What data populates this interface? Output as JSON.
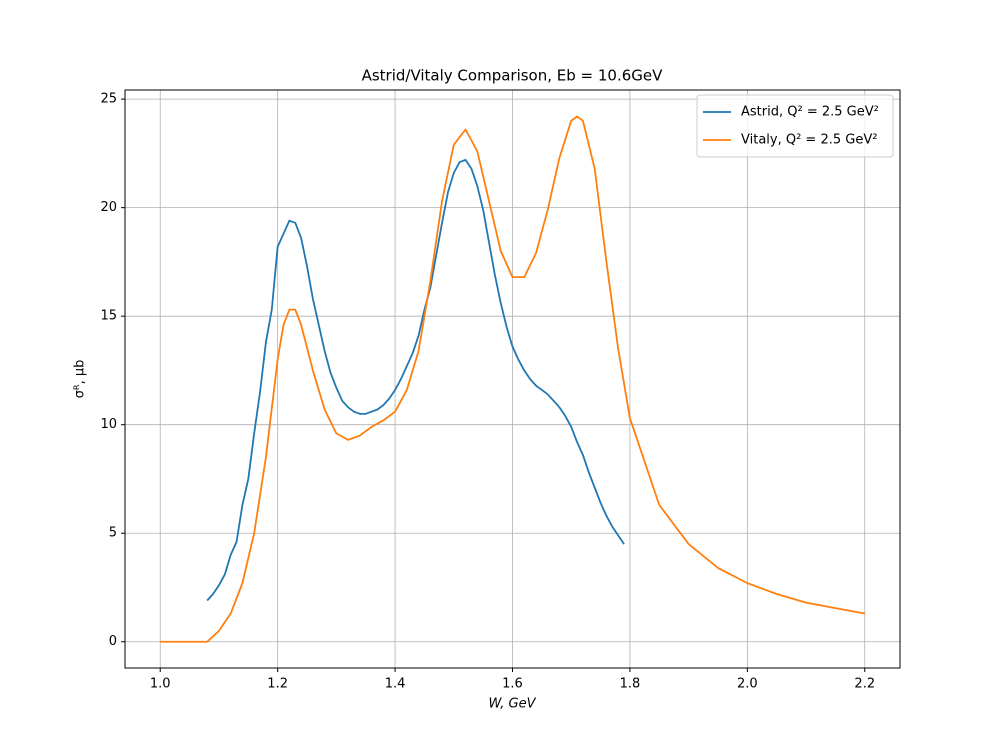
{
  "chart_data": {
    "type": "line",
    "title": "Astrid/Vitaly Comparison, Eb = 10.6GeV",
    "x_label": "W, GeV",
    "y_label": "σᴿ, μb",
    "xlim": [
      0.94,
      2.26
    ],
    "ylim": [
      -1.21,
      25.42
    ],
    "xticks": [
      {
        "value": 1,
        "label": "1.0"
      },
      1.2,
      1.4,
      1.6,
      1.8,
      {
        "value": 2,
        "label": "2.0"
      },
      2.2
    ],
    "yticks": [
      0,
      5,
      10,
      15,
      20,
      25
    ],
    "grid": true,
    "legend": "upper right",
    "series": [
      {
        "name": "Astrid, Q² = 2.5 GeV²",
        "color": "#1f77b4",
        "x": [
          1.08,
          1.09,
          1.1,
          1.11,
          1.12,
          1.13,
          1.14,
          1.15,
          1.16,
          1.17,
          1.18,
          1.19,
          1.2,
          1.21,
          1.22,
          1.23,
          1.24,
          1.25,
          1.26,
          1.27,
          1.28,
          1.29,
          1.3,
          1.31,
          1.32,
          1.33,
          1.34,
          1.35,
          1.36,
          1.37,
          1.38,
          1.39,
          1.4,
          1.41,
          1.42,
          1.43,
          1.44,
          1.45,
          1.46,
          1.47,
          1.48,
          1.49,
          1.5,
          1.51,
          1.52,
          1.53,
          1.54,
          1.55,
          1.56,
          1.57,
          1.58,
          1.59,
          1.6,
          1.61,
          1.62,
          1.63,
          1.64,
          1.65,
          1.66,
          1.67,
          1.68,
          1.69,
          1.7,
          1.71,
          1.72,
          1.73,
          1.74,
          1.75,
          1.76,
          1.77,
          1.78,
          1.79
        ],
        "values": [
          1.9,
          2.2,
          2.6,
          3.1,
          4.0,
          4.6,
          6.3,
          7.5,
          9.6,
          11.5,
          13.8,
          15.3,
          18.2,
          18.8,
          19.4,
          19.3,
          18.6,
          17.3,
          15.8,
          14.6,
          13.4,
          12.4,
          11.7,
          11.1,
          10.8,
          10.6,
          10.5,
          10.5,
          10.6,
          10.7,
          10.9,
          11.2,
          11.6,
          12.1,
          12.7,
          13.3,
          14.1,
          15.3,
          16.3,
          17.8,
          19.3,
          20.7,
          21.6,
          22.1,
          22.2,
          21.8,
          21.0,
          19.9,
          18.4,
          16.9,
          15.6,
          14.5,
          13.6,
          13.0,
          12.5,
          12.1,
          11.8,
          11.6,
          11.4,
          11.1,
          10.8,
          10.4,
          9.9,
          9.2,
          8.6,
          7.8,
          7.1,
          6.4,
          5.8,
          5.3,
          4.9,
          4.5
        ]
      },
      {
        "name": "Vitaly, Q² = 2.5 GeV²",
        "color": "#ff7f0e",
        "x": [
          1.0,
          1.04,
          1.08,
          1.1,
          1.12,
          1.14,
          1.16,
          1.18,
          1.2,
          1.21,
          1.22,
          1.23,
          1.24,
          1.26,
          1.28,
          1.3,
          1.32,
          1.34,
          1.36,
          1.38,
          1.4,
          1.42,
          1.44,
          1.46,
          1.48,
          1.5,
          1.52,
          1.54,
          1.56,
          1.58,
          1.6,
          1.62,
          1.64,
          1.66,
          1.68,
          1.7,
          1.71,
          1.72,
          1.74,
          1.76,
          1.78,
          1.8,
          1.85,
          1.9,
          1.95,
          2.0,
          2.05,
          2.1,
          2.15,
          2.2
        ],
        "values": [
          0,
          0,
          0,
          0.5,
          1.3,
          2.7,
          5.0,
          8.5,
          13.0,
          14.6,
          15.3,
          15.3,
          14.6,
          12.5,
          10.7,
          9.6,
          9.3,
          9.5,
          9.9,
          10.2,
          10.6,
          11.6,
          13.4,
          16.6,
          20.3,
          22.9,
          23.6,
          22.6,
          20.3,
          18.0,
          16.8,
          16.8,
          17.9,
          19.9,
          22.3,
          24.0,
          24.2,
          24.0,
          21.8,
          17.5,
          13.5,
          10.3,
          6.3,
          4.5,
          3.4,
          2.7,
          2.2,
          1.8,
          1.55,
          1.3
        ]
      }
    ]
  }
}
